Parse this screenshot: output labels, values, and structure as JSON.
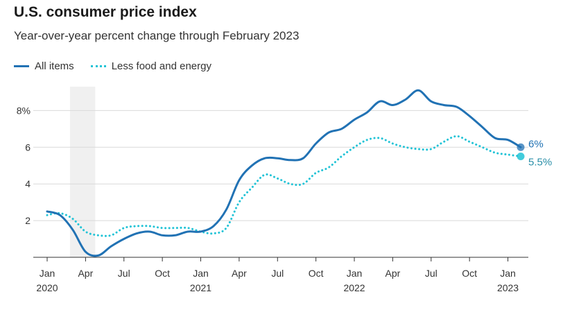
{
  "title": "U.S. consumer price index",
  "subtitle": "Year-over-year percent change through February 2023",
  "colors": {
    "all_items": "#2172b4",
    "core": "#21c3d6",
    "recession": "#f0f0f0",
    "grid": "#d9d9d9"
  },
  "chart_data": {
    "type": "line",
    "x_start": "2020-01",
    "x_end": "2023-02",
    "ylim": [
      0,
      9.3
    ],
    "y_ticks": [
      {
        "value": 2,
        "label": "2"
      },
      {
        "value": 4,
        "label": "4"
      },
      {
        "value": 6,
        "label": "6"
      },
      {
        "value": 8,
        "label": "8%"
      }
    ],
    "x_ticks": [
      {
        "date": "2020-01",
        "label": "Jan",
        "year": "2020"
      },
      {
        "date": "2020-04",
        "label": "Apr",
        "year": ""
      },
      {
        "date": "2020-07",
        "label": "Jul",
        "year": ""
      },
      {
        "date": "2020-10",
        "label": "Oct",
        "year": ""
      },
      {
        "date": "2021-01",
        "label": "Jan",
        "year": "2021"
      },
      {
        "date": "2021-04",
        "label": "Apr",
        "year": ""
      },
      {
        "date": "2021-07",
        "label": "Jul",
        "year": ""
      },
      {
        "date": "2021-10",
        "label": "Oct",
        "year": ""
      },
      {
        "date": "2022-01",
        "label": "Jan",
        "year": "2022"
      },
      {
        "date": "2022-04",
        "label": "Apr",
        "year": ""
      },
      {
        "date": "2022-07",
        "label": "Jul",
        "year": ""
      },
      {
        "date": "2022-10",
        "label": "Oct",
        "year": ""
      },
      {
        "date": "2023-01",
        "label": "Jan",
        "year": "2023"
      }
    ],
    "recession": [
      "2020-03",
      "2020-04"
    ],
    "grid": true,
    "legend": "top-left",
    "x": [
      "2020-01",
      "2020-02",
      "2020-03",
      "2020-04",
      "2020-05",
      "2020-06",
      "2020-07",
      "2020-08",
      "2020-09",
      "2020-10",
      "2020-11",
      "2020-12",
      "2021-01",
      "2021-02",
      "2021-03",
      "2021-04",
      "2021-05",
      "2021-06",
      "2021-07",
      "2021-08",
      "2021-09",
      "2021-10",
      "2021-11",
      "2021-12",
      "2022-01",
      "2022-02",
      "2022-03",
      "2022-04",
      "2022-05",
      "2022-06",
      "2022-07",
      "2022-08",
      "2022-09",
      "2022-10",
      "2022-11",
      "2022-12",
      "2023-01",
      "2023-02"
    ],
    "series": [
      {
        "name": "All items",
        "style": "solid",
        "end_label": "6%",
        "values": [
          2.5,
          2.3,
          1.5,
          0.3,
          0.1,
          0.6,
          1.0,
          1.3,
          1.4,
          1.2,
          1.2,
          1.4,
          1.4,
          1.7,
          2.6,
          4.2,
          5.0,
          5.4,
          5.4,
          5.3,
          5.4,
          6.2,
          6.8,
          7.0,
          7.5,
          7.9,
          8.5,
          8.3,
          8.6,
          9.1,
          8.5,
          8.3,
          8.2,
          7.7,
          7.1,
          6.5,
          6.4,
          6.0
        ]
      },
      {
        "name": "Less food and energy",
        "style": "dotted",
        "end_label": "5.5%",
        "values": [
          2.3,
          2.4,
          2.1,
          1.4,
          1.2,
          1.2,
          1.6,
          1.7,
          1.7,
          1.6,
          1.6,
          1.6,
          1.4,
          1.3,
          1.6,
          3.0,
          3.8,
          4.5,
          4.3,
          4.0,
          4.0,
          4.6,
          4.9,
          5.5,
          6.0,
          6.4,
          6.5,
          6.2,
          6.0,
          5.9,
          5.9,
          6.3,
          6.6,
          6.3,
          6.0,
          5.7,
          5.6,
          5.5
        ]
      }
    ]
  }
}
